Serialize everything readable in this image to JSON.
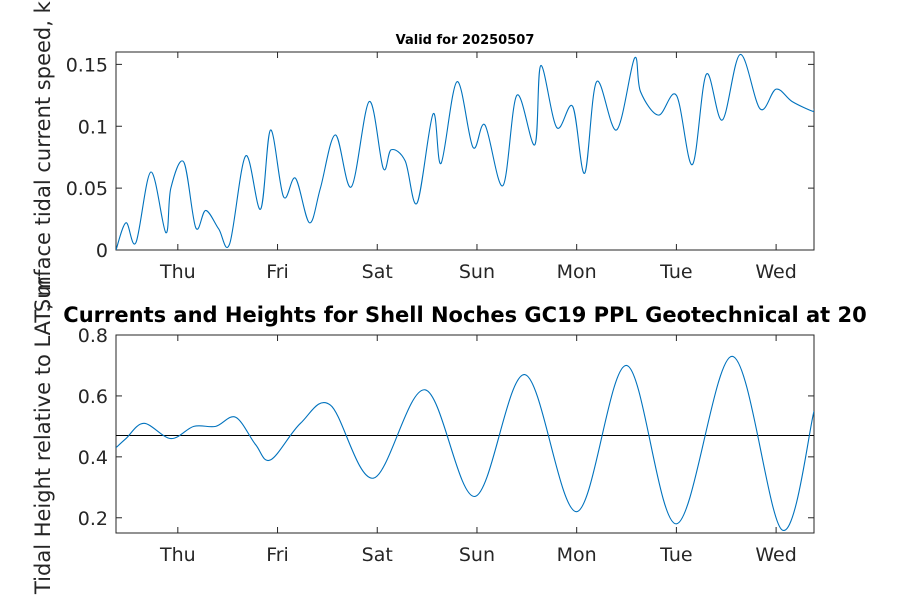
{
  "chart_data": [
    {
      "type": "line",
      "title": "Valid for 20250507",
      "ylabel": "Surface tidal current speed, kn",
      "xlabel": "",
      "xlim": [
        0,
        7
      ],
      "ylim": [
        0,
        0.16
      ],
      "yticks": [
        0,
        0.05,
        0.1,
        0.15
      ],
      "ytick_labels": [
        "0",
        "0.05",
        "0.1",
        "0.15"
      ],
      "xticks": [
        0.62,
        1.62,
        2.62,
        3.62,
        4.62,
        5.62,
        6.62
      ],
      "xtick_labels": [
        "Thu",
        "Fri",
        "Sat",
        "Sun",
        "Mon",
        "Tue",
        "Wed"
      ],
      "color": "#0072BD",
      "series": [
        {
          "x": [
            0.0,
            0.1,
            0.2,
            0.35,
            0.5,
            0.55,
            0.68,
            0.8,
            0.9,
            1.03,
            1.14,
            1.3,
            1.45,
            1.55,
            1.68,
            1.8,
            1.94,
            2.05,
            2.2,
            2.36,
            2.54,
            2.68,
            2.76,
            2.9,
            3.02,
            3.18,
            3.26,
            3.42,
            3.58,
            3.7,
            3.88,
            4.02,
            4.2,
            4.26,
            4.42,
            4.58,
            4.7,
            4.82,
            5.02,
            5.2,
            5.26,
            5.44,
            5.62,
            5.78,
            5.92,
            6.08,
            6.26,
            6.46,
            6.62,
            6.78,
            6.99,
            7.0
          ],
          "y": [
            0.0,
            0.022,
            0.006,
            0.063,
            0.014,
            0.05,
            0.071,
            0.018,
            0.032,
            0.017,
            0.005,
            0.076,
            0.033,
            0.097,
            0.043,
            0.058,
            0.022,
            0.05,
            0.093,
            0.051,
            0.12,
            0.066,
            0.081,
            0.072,
            0.038,
            0.11,
            0.07,
            0.136,
            0.083,
            0.101,
            0.052,
            0.125,
            0.085,
            0.149,
            0.099,
            0.116,
            0.062,
            0.136,
            0.097,
            0.155,
            0.128,
            0.109,
            0.125,
            0.069,
            0.142,
            0.105,
            0.158,
            0.114,
            0.13,
            0.12,
            0.112,
            0.114
          ]
        }
      ]
    },
    {
      "type": "line",
      "title": "Currents and Heights for Shell Noches   GC19 PPL  Geotechnical at 20",
      "ylabel": "Tidal Height relative to LAT, m",
      "xlabel": "",
      "xlim": [
        0,
        7
      ],
      "ylim": [
        0.15,
        0.8
      ],
      "yticks": [
        0.2,
        0.4,
        0.6,
        0.8
      ],
      "ytick_labels": [
        "0.2",
        "0.4",
        "0.6",
        "0.8"
      ],
      "xticks": [
        0.62,
        1.62,
        2.62,
        3.62,
        4.62,
        5.62,
        6.62
      ],
      "xtick_labels": [
        "Thu",
        "Fri",
        "Sat",
        "Sun",
        "Mon",
        "Tue",
        "Wed"
      ],
      "reference_line": 0.47,
      "color": "#0072BD",
      "series": [
        {
          "x": [
            0.0,
            0.1,
            0.28,
            0.55,
            0.78,
            1.0,
            1.2,
            1.4,
            1.55,
            1.85,
            2.15,
            2.58,
            3.1,
            3.6,
            4.1,
            4.62,
            5.12,
            5.62,
            6.18,
            6.68,
            7.0
          ],
          "y": [
            0.43,
            0.46,
            0.51,
            0.46,
            0.5,
            0.5,
            0.53,
            0.44,
            0.39,
            0.51,
            0.57,
            0.33,
            0.62,
            0.27,
            0.67,
            0.22,
            0.7,
            0.18,
            0.73,
            0.16,
            0.55
          ]
        }
      ]
    }
  ]
}
